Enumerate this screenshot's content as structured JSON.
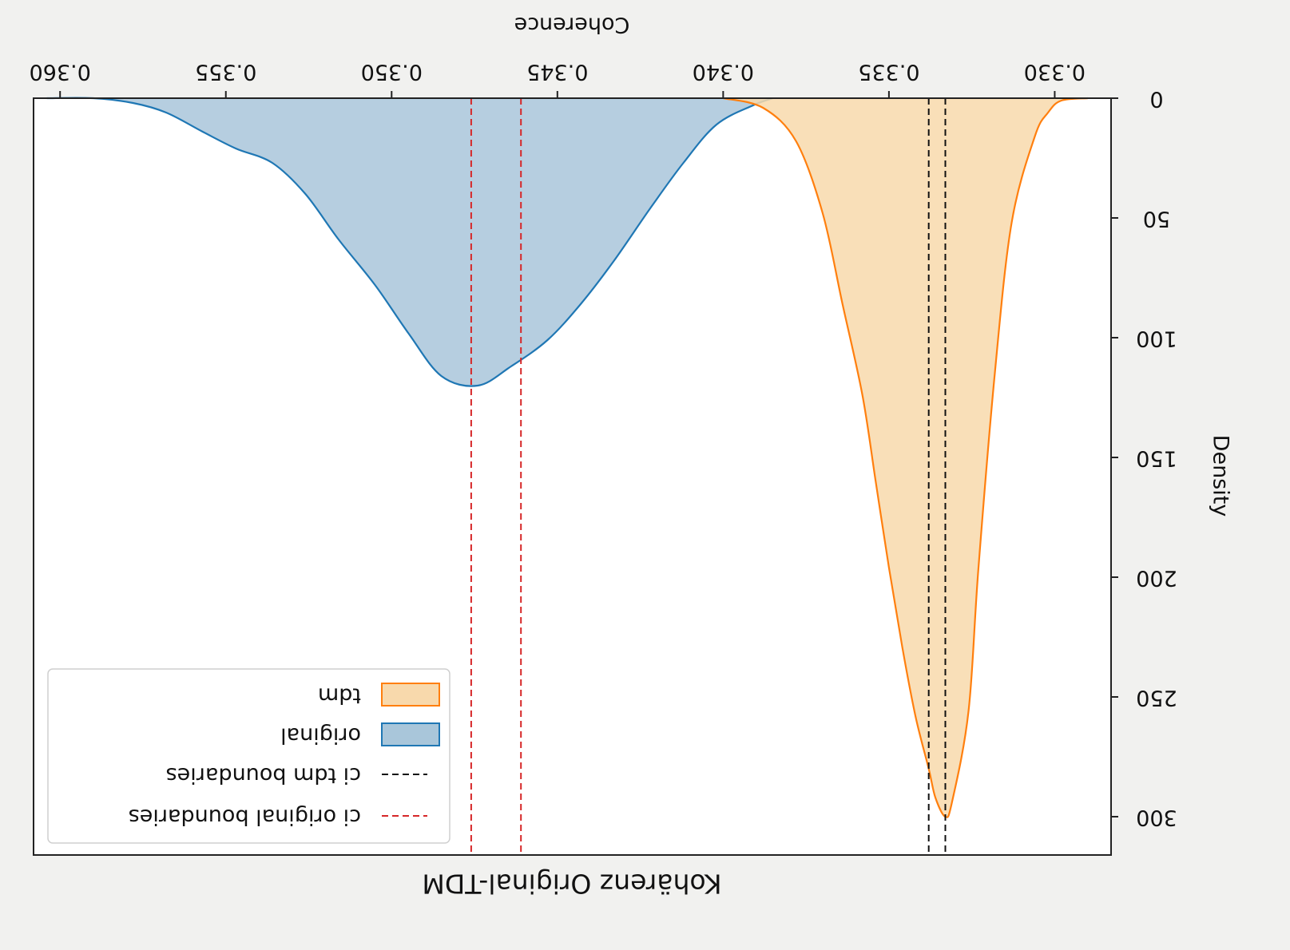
{
  "chart_data": {
    "type": "area",
    "title": "Kohärenz Original-TDM",
    "xlabel": "Coherence",
    "ylabel": "Density",
    "orientation": "image rotated 180 degrees",
    "xlim": [
      0.3608,
      0.3283
    ],
    "ylim": [
      0,
      316
    ],
    "xticks": [
      0.33,
      0.335,
      0.34,
      0.345,
      0.35,
      0.355,
      0.36
    ],
    "xtick_labels": [
      "0.330",
      "0.335",
      "0.340",
      "0.345",
      "0.350",
      "0.355",
      "0.360"
    ],
    "yticks": [
      0,
      50,
      100,
      150,
      200,
      250,
      300
    ],
    "ytick_labels": [
      "0",
      "50",
      "100",
      "150",
      "200",
      "250",
      "300"
    ],
    "grid": false,
    "legend_position": "upper right (appears lower-left after rotation)",
    "series": [
      {
        "name": "original",
        "kind": "kde",
        "color": "#1f77b4",
        "fill": "#a9c6da",
        "x": [
          0.3604,
          0.359,
          0.3578,
          0.3568,
          0.3557,
          0.3547,
          0.3536,
          0.3526,
          0.3516,
          0.3505,
          0.3495,
          0.3485,
          0.3474,
          0.3464,
          0.3453,
          0.3443,
          0.3433,
          0.3422,
          0.3412,
          0.3402,
          0.3391,
          0.3385
        ],
        "values": [
          0,
          0,
          2,
          6,
          14,
          21,
          27,
          40,
          59,
          78,
          98,
          116,
          120,
          112,
          101,
          86,
          68,
          46,
          27,
          11,
          3,
          0
        ]
      },
      {
        "name": "tdm",
        "kind": "kde",
        "color": "#ff7f0e",
        "fill": "#f8d9ac",
        "x": [
          0.34,
          0.3388,
          0.3378,
          0.337,
          0.3364,
          0.3358,
          0.3354,
          0.335,
          0.3346,
          0.3342,
          0.3338,
          0.3336,
          0.3333,
          0.3331,
          0.3326,
          0.3323,
          0.3318,
          0.3313,
          0.3306,
          0.3302,
          0.3298,
          0.329
        ],
        "values": [
          0,
          4,
          18,
          48,
          86,
          124,
          160,
          196,
          229,
          258,
          280,
          292,
          300,
          294,
          256,
          196,
          114,
          52,
          16,
          6,
          1,
          0
        ]
      }
    ],
    "ci_lines": [
      {
        "name": "ci tdm boundaries",
        "color": "#111111",
        "x": [
          0.3338,
          0.3333
        ]
      },
      {
        "name": "ci original boundaries",
        "color": "#d62728",
        "x": [
          0.3476,
          0.3461
        ]
      }
    ],
    "legend": [
      {
        "label": "ci original boundaries",
        "marker": "dashed-line",
        "color": "#d62728"
      },
      {
        "label": "ci tdm boundaries",
        "marker": "dashed-line",
        "color": "#111111"
      },
      {
        "label": "original",
        "marker": "patch",
        "color": "#1f77b4",
        "fill": "#a9c6da"
      },
      {
        "label": "tdm",
        "marker": "patch",
        "color": "#ff7f0e",
        "fill": "#f8d9ac"
      }
    ]
  }
}
